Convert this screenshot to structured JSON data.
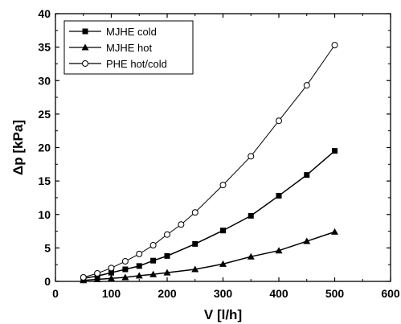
{
  "chart_data": {
    "type": "line",
    "title": "",
    "xlabel": "V [l/h]",
    "ylabel": "Δp [kPa]",
    "xlim": [
      0,
      600
    ],
    "ylim": [
      0,
      40
    ],
    "xticks": [
      0,
      100,
      200,
      300,
      400,
      500,
      600
    ],
    "yticks": [
      0,
      5,
      10,
      15,
      20,
      25,
      30,
      35,
      40
    ],
    "grid": false,
    "legend_position": "top-left",
    "series": [
      {
        "name": "MJHE cold",
        "marker": "filled-square",
        "color": "#000000",
        "x": [
          50,
          75,
          100,
          125,
          150,
          175,
          200,
          250,
          300,
          350,
          400,
          450,
          500
        ],
        "y": [
          0.45,
          0.8,
          1.3,
          1.8,
          2.3,
          3.1,
          3.8,
          5.6,
          7.6,
          9.8,
          12.8,
          15.9,
          19.5
        ]
      },
      {
        "name": "MJHE hot",
        "marker": "filled-triangle",
        "color": "#000000",
        "x": [
          50,
          75,
          100,
          125,
          150,
          175,
          200,
          250,
          300,
          350,
          400,
          450,
          500
        ],
        "y": [
          0.15,
          0.3,
          0.45,
          0.6,
          0.85,
          1.05,
          1.3,
          1.8,
          2.6,
          3.7,
          4.6,
          6.0,
          7.4
        ]
      },
      {
        "name": "PHE hot/cold",
        "marker": "open-circle",
        "color": "#000000",
        "x": [
          50,
          75,
          100,
          125,
          150,
          175,
          200,
          225,
          250,
          300,
          350,
          400,
          450,
          500
        ],
        "y": [
          0.6,
          1.2,
          2.0,
          3.0,
          4.1,
          5.4,
          7.0,
          8.5,
          10.3,
          14.4,
          18.7,
          24.0,
          29.3,
          35.3
        ]
      }
    ]
  }
}
